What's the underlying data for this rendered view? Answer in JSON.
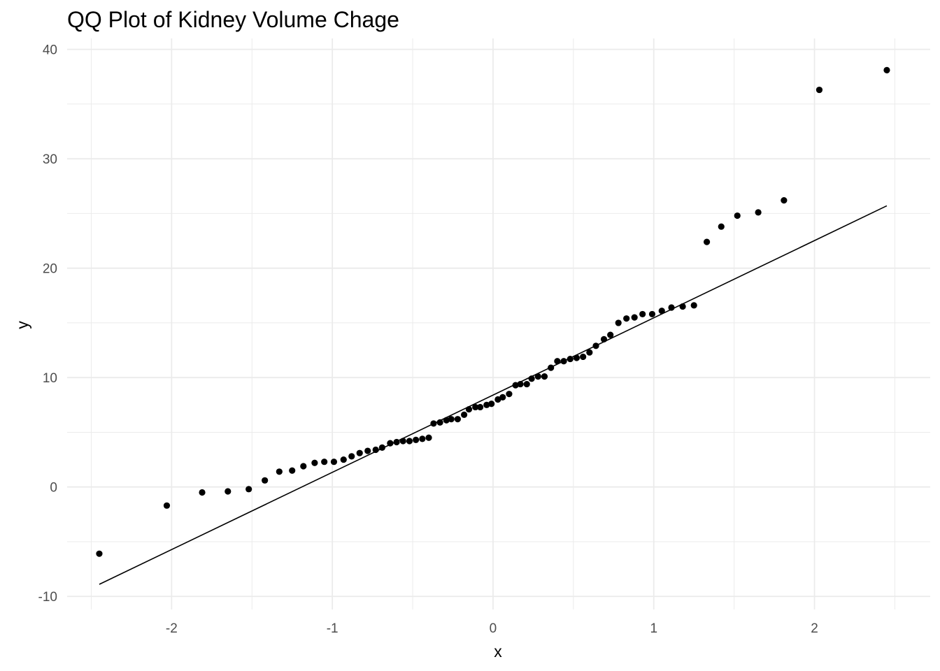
{
  "chart_data": {
    "type": "scatter",
    "title": "QQ Plot of Kidney Volume Chage",
    "xlabel": "x",
    "ylabel": "y",
    "xlim": [
      -2.65,
      2.72
    ],
    "ylim": [
      -11.2,
      41
    ],
    "x_ticks": [
      -2,
      -1,
      0,
      1,
      2
    ],
    "x_tick_labels": [
      "-2",
      "-1",
      "0",
      "1",
      "2"
    ],
    "y_ticks": [
      -10,
      0,
      10,
      20,
      30,
      40
    ],
    "y_tick_labels": [
      "-10",
      "0",
      "10",
      "20",
      "30",
      "40"
    ],
    "grid": true,
    "points": [
      [
        -2.45,
        -6.1
      ],
      [
        -2.03,
        -1.7
      ],
      [
        -1.81,
        -0.5
      ],
      [
        -1.65,
        -0.4
      ],
      [
        -1.52,
        -0.2
      ],
      [
        -1.42,
        0.6
      ],
      [
        -1.33,
        1.4
      ],
      [
        -1.25,
        1.5
      ],
      [
        -1.18,
        1.9
      ],
      [
        -1.11,
        2.2
      ],
      [
        -1.05,
        2.3
      ],
      [
        -0.99,
        2.3
      ],
      [
        -0.93,
        2.5
      ],
      [
        -0.88,
        2.8
      ],
      [
        -0.83,
        3.1
      ],
      [
        -0.78,
        3.3
      ],
      [
        -0.73,
        3.4
      ],
      [
        -0.69,
        3.6
      ],
      [
        -0.64,
        4.0
      ],
      [
        -0.6,
        4.1
      ],
      [
        -0.56,
        4.2
      ],
      [
        -0.52,
        4.2
      ],
      [
        -0.48,
        4.3
      ],
      [
        -0.44,
        4.4
      ],
      [
        -0.4,
        4.5
      ],
      [
        -0.37,
        5.8
      ],
      [
        -0.33,
        5.9
      ],
      [
        -0.29,
        6.1
      ],
      [
        -0.26,
        6.2
      ],
      [
        -0.22,
        6.2
      ],
      [
        -0.18,
        6.6
      ],
      [
        -0.15,
        7.1
      ],
      [
        -0.11,
        7.3
      ],
      [
        -0.08,
        7.3
      ],
      [
        -0.04,
        7.5
      ],
      [
        -0.01,
        7.6
      ],
      [
        0.03,
        8.0
      ],
      [
        0.06,
        8.2
      ],
      [
        0.1,
        8.5
      ],
      [
        0.14,
        9.3
      ],
      [
        0.17,
        9.4
      ],
      [
        0.21,
        9.4
      ],
      [
        0.24,
        9.9
      ],
      [
        0.28,
        10.1
      ],
      [
        0.32,
        10.1
      ],
      [
        0.36,
        10.9
      ],
      [
        0.4,
        11.5
      ],
      [
        0.44,
        11.5
      ],
      [
        0.48,
        11.7
      ],
      [
        0.52,
        11.8
      ],
      [
        0.56,
        11.9
      ],
      [
        0.6,
        12.3
      ],
      [
        0.64,
        12.9
      ],
      [
        0.69,
        13.5
      ],
      [
        0.73,
        13.9
      ],
      [
        0.78,
        15.0
      ],
      [
        0.83,
        15.4
      ],
      [
        0.88,
        15.5
      ],
      [
        0.93,
        15.8
      ],
      [
        0.99,
        15.8
      ],
      [
        1.05,
        16.1
      ],
      [
        1.11,
        16.4
      ],
      [
        1.18,
        16.5
      ],
      [
        1.25,
        16.6
      ],
      [
        1.33,
        22.4
      ],
      [
        1.42,
        23.8
      ],
      [
        1.52,
        24.8
      ],
      [
        1.65,
        25.1
      ],
      [
        1.81,
        26.2
      ],
      [
        2.03,
        36.3
      ],
      [
        2.45,
        38.1
      ]
    ],
    "reference_line": {
      "x": [
        -2.45,
        2.45
      ],
      "y": [
        -8.9,
        25.7
      ]
    }
  }
}
